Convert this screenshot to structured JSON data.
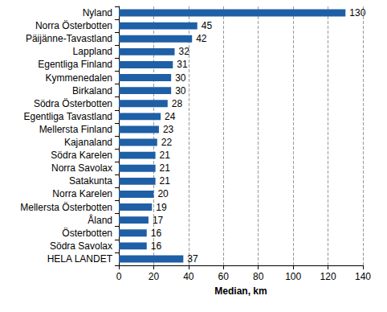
{
  "chart_data": {
    "type": "bar",
    "orientation": "horizontal",
    "categories": [
      "Nyland",
      "Norra Österbotten",
      "Päijänne-Tavastland",
      "Lappland",
      "Egentliga Finland",
      "Kymmenedalen",
      "Birkaland",
      "Södra Österbotten",
      "Egentliga Tavastland",
      "Mellersta Finland",
      "Kajanaland",
      "Södra Karelen",
      "Norra Savolax",
      "Satakunta",
      "Norra Karelen",
      "Mellersta Österbotten",
      "Åland",
      "Österbotten",
      "Södra Savolax",
      "HELA LANDET"
    ],
    "values": [
      130,
      45,
      42,
      32,
      31,
      30,
      30,
      28,
      24,
      23,
      22,
      21,
      21,
      21,
      20,
      19,
      17,
      16,
      16,
      37
    ],
    "color": "#1f5fa6",
    "x_label": "Median, km",
    "xlim": [
      0,
      140
    ],
    "xticks": [
      0,
      20,
      40,
      60,
      80,
      100,
      120,
      140
    ],
    "grid": true,
    "data_labels": true
  }
}
